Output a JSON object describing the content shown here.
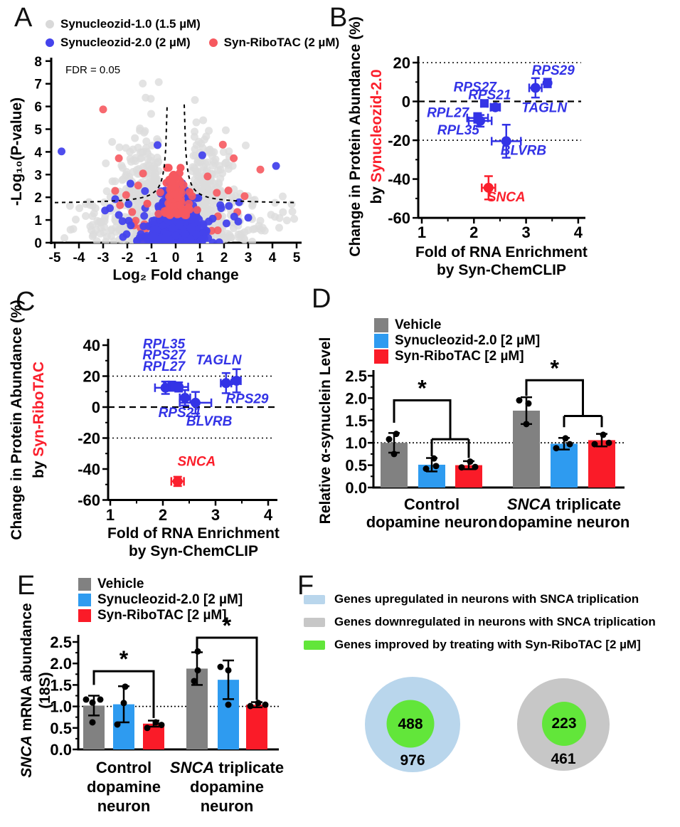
{
  "panel_letters": {
    "A": "A",
    "B": "B",
    "C": "C",
    "D": "D",
    "E": "E",
    "F": "F"
  },
  "colors": {
    "volcano_gray": "#dcdcdc",
    "volcano_blue": "#4443ec",
    "volcano_red": "#f6595f",
    "point_blue": "#3333e6",
    "point_red": "#fb1f2c",
    "bar_gray": "#818181",
    "bar_blue": "#2e9bf0",
    "bar_red": "#fa1b28",
    "venn_blue": "#b9d6ec",
    "venn_gray": "#c7c7c7",
    "venn_green": "#62e63a"
  },
  "chart_data": [
    {
      "panel": "A",
      "type": "scatter",
      "subtype": "volcano",
      "legend": [
        {
          "label": "Synucleozid-1.0 (1.5 µM)",
          "color": "#d9d9d9"
        },
        {
          "label": "Synucleozid-2.0 (2 µM)",
          "color": "#4443ec"
        },
        {
          "label": "Syn-RiboTAC (2 µM)",
          "color": "#f6595f"
        }
      ],
      "xlabel": "Log₂ Fold change",
      "ylabel": "-Log₁₀(P-value)",
      "annotation": "FDR = 0.05",
      "xlim": [
        -5,
        5
      ],
      "ylim": [
        0,
        8
      ],
      "xticks": [
        -5,
        -4,
        -3,
        -2,
        -1,
        0,
        1,
        2,
        3,
        4,
        5
      ],
      "yticks": [
        0,
        1,
        2,
        3,
        4,
        5,
        6,
        7,
        8
      ],
      "fdr_curve": {
        "y_asym": 1.7,
        "x_asym": 0.28,
        "scale": 0.32
      },
      "generated_points": {
        "seed": 7,
        "gray_n": 820,
        "blue_core_n": 700,
        "blue_mid_n": 70,
        "red_core_n": 250,
        "red_col_n": 40,
        "red_mid_n": 45
      },
      "blue_outliers": [
        [
          -4.72,
          4.02
        ],
        [
          -0.75,
          4.3
        ],
        [
          1.1,
          3.85
        ],
        [
          4.15,
          3.38
        ],
        [
          -2.5,
          1.92
        ],
        [
          -2.72,
          1.52
        ],
        [
          -2.92,
          1.42
        ],
        [
          -2.35,
          1.22
        ],
        [
          1.88,
          1.52
        ],
        [
          2.2,
          1.62
        ],
        [
          2.62,
          1.78
        ],
        [
          2.42,
          1.15
        ],
        [
          -2.2,
          0.95
        ],
        [
          2.1,
          0.85
        ],
        [
          -1.95,
          1.7
        ],
        [
          3.0,
          1.1
        ]
      ],
      "red_outliers": [
        [
          -3.0,
          5.87
        ],
        [
          3.5,
          3.22
        ],
        [
          -2.35,
          3.72
        ],
        [
          1.95,
          4.32
        ],
        [
          2.4,
          3.72
        ],
        [
          -2.5,
          2.28
        ],
        [
          -2.05,
          2.1
        ],
        [
          2.18,
          2.3
        ],
        [
          2.85,
          2.05
        ],
        [
          -1.55,
          2.52
        ],
        [
          1.32,
          2.92
        ],
        [
          -1.35,
          3.05
        ],
        [
          -2.3,
          1.65
        ],
        [
          1.7,
          2.2
        ],
        [
          2.55,
          1.35
        ],
        [
          -1.8,
          1.35
        ]
      ]
    },
    {
      "panel": "B",
      "type": "scatter",
      "subtype": "errorbar",
      "ylabel_line1": "Change in Protein Abundance (%)",
      "ylabel_line2_prefix": "by ",
      "ylabel_line2_highlight": "Synucleozid-2.0",
      "xlabel_line1": "Fold of RNA Enrichment",
      "xlabel_line2": "by Syn-ChemCLIP",
      "xlim": [
        1,
        4
      ],
      "ylim": [
        -60,
        20
      ],
      "xticks": [
        1,
        2,
        3,
        4
      ],
      "yticks": [
        20,
        0,
        -20,
        -40,
        -60
      ],
      "hlines": {
        "dotted": [
          20,
          -20
        ],
        "dashed": [
          0
        ]
      },
      "points": [
        {
          "gene": "RPS27",
          "x": 2.2,
          "y": -1,
          "xerr": 0.06,
          "yerr": 1.2,
          "color": "blue",
          "shape": "square",
          "label_x": 2.02,
          "label_y": 5.2
        },
        {
          "gene": "RPS21",
          "x": 2.41,
          "y": -3,
          "xerr": 0.09,
          "yerr": 1.6,
          "color": "blue",
          "shape": "circle",
          "label_x": 2.3,
          "label_y": 1.2
        },
        {
          "gene": "RPS29",
          "x": 3.41,
          "y": 9.5,
          "xerr": 0.06,
          "yerr": 2.2,
          "color": "blue",
          "shape": "circle",
          "label_x": 3.52,
          "label_y": 13.8
        },
        {
          "gene": "TAGLN",
          "x": 3.18,
          "y": 7,
          "xerr": 0.12,
          "yerr": 5,
          "color": "blue",
          "shape": "circle",
          "label_x": 3.35,
          "label_y": -5.5
        },
        {
          "gene": "RPL27",
          "x": 2.07,
          "y": -8.5,
          "xerr": 0.2,
          "yerr": 2.5,
          "color": "blue",
          "shape": "square",
          "label_x": 1.5,
          "label_y": -8
        },
        {
          "gene": "RPL35",
          "x": 2.12,
          "y": -10,
          "xerr": 0.22,
          "yerr": 3,
          "color": "blue",
          "shape": "circle",
          "label_x": 1.7,
          "label_y": -17
        },
        {
          "gene": "BLVRB",
          "x": 2.62,
          "y": -20.5,
          "xerr": 0.28,
          "yerr": 8.5,
          "color": "blue",
          "shape": "circle",
          "label_x": 2.95,
          "label_y": -27.5
        },
        {
          "gene": "SNCA",
          "x": 2.28,
          "y": -44.5,
          "xerr": 0.13,
          "yerr": 6,
          "color": "red",
          "shape": "circle",
          "label_x": 2.62,
          "label_y": -51.5
        }
      ]
    },
    {
      "panel": "C",
      "type": "scatter",
      "subtype": "errorbar",
      "ylabel_line1": "Change in Protein Abundance (%)",
      "ylabel_line2_prefix": "by ",
      "ylabel_line2_highlight": "Syn-RiboTAC",
      "xlabel_line1": "Fold of RNA Enrichment",
      "xlabel_line2": "by Syn-ChemCLIP",
      "xlim": [
        1,
        4
      ],
      "ylim": [
        -60,
        40
      ],
      "xticks": [
        1,
        2,
        3,
        4
      ],
      "yticks": [
        40,
        20,
        0,
        -20,
        -40,
        -60
      ],
      "hlines": {
        "dotted": [
          20,
          -20
        ],
        "dashed": [
          0
        ]
      },
      "points": [
        {
          "gene": "RPL27",
          "x": 2.05,
          "y": 12.5,
          "xerr": 0.2,
          "yerr": 4,
          "color": "blue",
          "shape": "circle",
          "label_x": 2.02,
          "label_y": 23.5
        },
        {
          "gene": "RPS27",
          "x": 2.17,
          "y": 13.5,
          "xerr": 0.15,
          "yerr": 3,
          "color": "blue",
          "shape": "square",
          "label_x": 2.02,
          "label_y": 30.8
        },
        {
          "gene": "RPL35",
          "x": 2.3,
          "y": 13,
          "xerr": 0.18,
          "yerr": 3,
          "color": "blue",
          "shape": "circle",
          "label_x": 2.02,
          "label_y": 38
        },
        {
          "gene": "RPS21",
          "x": 2.42,
          "y": 6,
          "xerr": 0.1,
          "yerr": 5,
          "color": "blue",
          "shape": "circle",
          "label_x": 2.32,
          "label_y": -6.5
        },
        {
          "gene": "BLVRB",
          "x": 2.62,
          "y": 2.8,
          "xerr": 0.3,
          "yerr": 7,
          "color": "blue",
          "shape": "circle",
          "label_x": 2.88,
          "label_y": -12
        },
        {
          "gene": "TAGLN",
          "x": 3.2,
          "y": 15.5,
          "xerr": 0.1,
          "yerr": 6.5,
          "color": "blue",
          "shape": "circle",
          "label_x": 3.06,
          "label_y": 27.5
        },
        {
          "gene": "RPS29",
          "x": 3.4,
          "y": 17,
          "xerr": 0.08,
          "yerr": 7.5,
          "color": "blue",
          "shape": "circle",
          "label_x": 3.6,
          "label_y": 2.5
        },
        {
          "gene": "SNCA",
          "x": 2.28,
          "y": -48,
          "xerr": 0.12,
          "yerr": 3,
          "color": "red",
          "shape": "circle",
          "label_x": 2.64,
          "label_y": -38
        }
      ]
    },
    {
      "panel": "D",
      "type": "bar",
      "ylabel": "Relative α-synuclein Level",
      "legend": [
        {
          "label": "Vehicle",
          "color": "#818181"
        },
        {
          "label": "Synucleozid-2.0 [2 µM]",
          "color": "#2e9bf0"
        },
        {
          "label": "Syn-RiboTAC [2 µM]",
          "color": "#fa1b28"
        }
      ],
      "ylim": [
        0,
        2.5
      ],
      "yticks": [
        "0.0",
        "0.5",
        "1.0",
        "1.5",
        "2.0",
        "2.5"
      ],
      "baseline": 1.0,
      "groups": [
        {
          "label_line1_italic": "",
          "label_line1_rest": "Control",
          "lines_rest": [
            "dopamine neuron"
          ],
          "bars": [
            {
              "series": "Vehicle",
              "mean": 1.0,
              "err": 0.22,
              "dots": [
                [
                  3,
                  1.2
                ],
                [
                  -7,
                  1.08
                ],
                [
                  0,
                  0.75
                ]
              ]
            },
            {
              "series": "Synucleozid-2.0 [2 µM]",
              "mean": 0.51,
              "err": 0.15,
              "dots": [
                [
                  3,
                  0.65
                ],
                [
                  -8,
                  0.42
                ],
                [
                  6,
                  0.48
                ]
              ]
            },
            {
              "series": "Syn-RiboTAC [2 µM]",
              "mean": 0.5,
              "err": 0.09,
              "dots": [
                [
                  -10,
                  0.45
                ],
                [
                  2,
                  0.58
                ],
                [
                  9,
                  0.46
                ]
              ]
            }
          ]
        },
        {
          "label_line1_italic": "SNCA",
          "label_line1_rest": " triplicate",
          "lines_rest": [
            "dopamine neuron"
          ],
          "bars": [
            {
              "series": "Vehicle",
              "mean": 1.72,
              "err": 0.3,
              "dots": [
                [
                  -10,
                  1.95
                ],
                [
                  3,
                  1.88
                ],
                [
                  0,
                  1.42
                ]
              ]
            },
            {
              "series": "Synucleozid-2.0 [2 µM]",
              "mean": 0.98,
              "err": 0.13,
              "dots": [
                [
                  -11,
                  0.88
                ],
                [
                  2,
                  1.1
                ],
                [
                  8,
                  0.97
                ]
              ]
            },
            {
              "series": "Syn-RiboTAC [2 µM]",
              "mean": 1.06,
              "err": 0.14,
              "dots": [
                [
                  -10,
                  0.97
                ],
                [
                  2,
                  1.18
                ],
                [
                  10,
                  1.0
                ]
              ]
            }
          ]
        }
      ],
      "brackets": [
        {
          "style": "grouped",
          "symbol": "*",
          "src": 0,
          "pair": [
            1,
            2
          ],
          "y_src": 1.45,
          "y_top": 1.95,
          "y_mid": 1.08,
          "y_drop": [
            0.7,
            0.66
          ]
        },
        {
          "style": "grouped",
          "symbol": "*",
          "src": 3,
          "pair": [
            4,
            5
          ],
          "y_src": 2.05,
          "y_top": 2.4,
          "y_mid": 1.6,
          "y_drop": [
            1.35,
            1.35
          ]
        }
      ]
    },
    {
      "panel": "E",
      "type": "bar",
      "ylabel_line1_italic": "SNCA",
      "ylabel_line1_rest": " mRNA abundance",
      "ylabel_line2": "(18S)",
      "legend": [
        {
          "label": "Vehicle",
          "color": "#818181"
        },
        {
          "label": "Synucleozid-2.0 [2 µM]",
          "color": "#2e9bf0"
        },
        {
          "label": "Syn-RiboTAC [2 µM]",
          "color": "#fa1b28"
        }
      ],
      "ylim": [
        0,
        2.5
      ],
      "yticks": [
        "0.0",
        "0.5",
        "1.0",
        "1.5",
        "2.0",
        "2.5"
      ],
      "baseline": 1.0,
      "groups": [
        {
          "label_line1_italic": "",
          "label_line1_rest": "Control",
          "lines_rest": [
            "dopamine",
            "neuron"
          ],
          "bars": [
            {
              "series": "Vehicle",
              "mean": 1.02,
              "err": 0.23,
              "dots": [
                [
                  -11,
                  1.16
                ],
                [
                  -2,
                  1.09
                ],
                [
                  9,
                  1.16
                ],
                [
                  -2,
                  0.63
                ]
              ]
            },
            {
              "series": "Synucleozid-2.0 [2 µM]",
              "mean": 1.05,
              "err": 0.42,
              "dots": [
                [
                  2,
                  1.46
                ],
                [
                  0,
                  1.08
                ],
                [
                  -9,
                  0.58
                ]
              ]
            },
            {
              "series": "Syn-RiboTAC [2 µM]",
              "mean": 0.6,
              "err": 0.07,
              "dots": [
                [
                  -9,
                  0.5
                ],
                [
                  3,
                  0.63
                ],
                [
                  11,
                  0.57
                ]
              ]
            }
          ]
        },
        {
          "label_line1_italic": "SNCA",
          "label_line1_rest": " triplicate",
          "lines_rest": [
            "dopamine",
            "neuron"
          ],
          "bars": [
            {
              "series": "Vehicle",
              "mean": 1.88,
              "err": 0.38,
              "dots": [
                [
                  1,
                  2.28
                ],
                [
                  1,
                  1.84
                ],
                [
                  -4,
                  1.59
                ]
              ]
            },
            {
              "series": "Synucleozid-2.0 [2 µM]",
              "mean": 1.62,
              "err": 0.45,
              "dots": [
                [
                  -11,
                  1.92
                ],
                [
                  0,
                  1.84
                ],
                [
                  0,
                  1.04
                ]
              ]
            },
            {
              "series": "Syn-RiboTAC [2 µM]",
              "mean": 1.04,
              "err": 0.06,
              "dots": [
                [
                  -9,
                  1.01
                ],
                [
                  2,
                  1.08
                ],
                [
                  12,
                  1.04
                ]
              ]
            }
          ]
        }
      ],
      "brackets": [
        {
          "style": "simple",
          "symbol": "*",
          "src": 0,
          "dst": 2,
          "y_src": 1.5,
          "y_top": 1.82,
          "y_drop": 0.73
        },
        {
          "style": "simple",
          "symbol": "*",
          "src": 3,
          "dst": 5,
          "y_src": 2.3,
          "y_top": 2.6,
          "y_drop": 1.15
        }
      ]
    },
    {
      "panel": "F",
      "type": "nested_circles",
      "legend": [
        {
          "label": "Genes upregulated in neurons with SNCA triplication",
          "color": "#b9d6ec"
        },
        {
          "label": "Genes downregulated in neurons with SNCA triplication",
          "color": "#c7c7c7"
        },
        {
          "label": "Genes improved by treating with Syn-RiboTAC [2 µM]",
          "color": "#62e63a"
        }
      ],
      "diagrams": [
        {
          "outer_value": "976",
          "inner_value": "488",
          "outer_color": "#b9d6ec",
          "inner_color": "#62e63a"
        },
        {
          "outer_value": "461",
          "inner_value": "223",
          "outer_color": "#c7c7c7",
          "inner_color": "#62e63a"
        }
      ]
    }
  ]
}
